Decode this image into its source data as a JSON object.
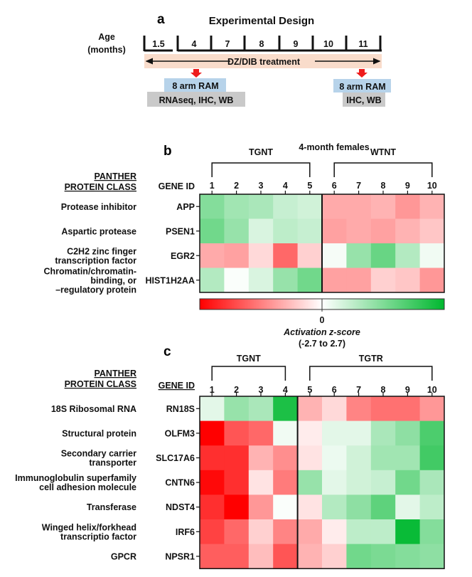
{
  "panel_a": {
    "letter": "a",
    "title": "Experimental Design",
    "age_label_1": "Age",
    "age_label_2": "(months)",
    "timepoints": [
      "1.5",
      "4",
      "7",
      "8",
      "9",
      "10",
      "11"
    ],
    "treatment": "DZ/DIB treatment",
    "left_box_top": "8 arm RAM",
    "left_box_bottom": "RNAseq, IHC, WB",
    "right_box_top": "8 arm RAM",
    "right_box_bottom": "IHC, WB",
    "colors": {
      "treatment_band": "#f9dccb",
      "arrow": "#ee1c1c",
      "blue_box": "#b7d3ea",
      "gray_box": "#c9c9c9"
    }
  },
  "chart_data": [
    {
      "type": "heatmap",
      "panel": "b",
      "title": "4-month females",
      "class_header_1": "PANTHER",
      "class_header_2": "PROTEIN CLASS",
      "gene_header": "GENE ID",
      "groups": [
        {
          "name": "TGNT",
          "columns": [
            1,
            2,
            3,
            4,
            5
          ]
        },
        {
          "name": "WTNT",
          "columns": [
            6,
            7,
            8,
            9,
            10
          ]
        }
      ],
      "columns": [
        "1",
        "2",
        "3",
        "4",
        "5",
        "6",
        "7",
        "8",
        "9",
        "10"
      ],
      "rows": [
        {
          "gene": "APP",
          "class": [
            "Protease inhibitor"
          ],
          "values": [
            1.3,
            1.0,
            0.9,
            0.6,
            0.5,
            -0.9,
            -0.9,
            -0.8,
            -1.1,
            -0.8
          ]
        },
        {
          "gene": "PSEN1",
          "class": [
            "Aspartic protease"
          ],
          "values": [
            1.5,
            1.1,
            0.4,
            0.7,
            0.6,
            -1.0,
            -0.9,
            -1.0,
            -0.8,
            -0.6
          ]
        },
        {
          "gene": "EGR2",
          "class": [
            "C2H2 zinc finger",
            "transcription factor"
          ],
          "values": [
            -0.9,
            -1.0,
            -0.4,
            -1.6,
            -0.5,
            0.1,
            1.1,
            1.6,
            0.8,
            0.15
          ]
        },
        {
          "gene": "HIST1H2AA",
          "class": [
            "Chromatin/chromatin-",
            "binding, or",
            "–regulatory protein"
          ],
          "values": [
            0.8,
            0.05,
            0.4,
            1.1,
            1.5,
            -1.0,
            -1.0,
            -0.5,
            -0.6,
            -1.1
          ]
        }
      ],
      "colorbar": {
        "min": -2.7,
        "max": 2.7,
        "tick": "0",
        "label": "Activation z-score",
        "range_label": "(-2.7 to 2.7)",
        "low_color": "#ff0000",
        "mid_color": "#ffffff",
        "high_color": "#00b82f"
      }
    },
    {
      "type": "heatmap",
      "panel": "c",
      "class_header_1": "PANTHER",
      "class_header_2": "PROTEIN CLASS",
      "gene_header": "GENE ID",
      "groups": [
        {
          "name": "TGNT",
          "columns": [
            1,
            2,
            3,
            4
          ]
        },
        {
          "name": "TGTR",
          "columns": [
            5,
            6,
            7,
            8,
            9,
            10
          ]
        }
      ],
      "columns": [
        "1",
        "2",
        "3",
        "4",
        "5",
        "6",
        "7",
        "8",
        "9",
        "10"
      ],
      "rows": [
        {
          "gene": "RN18S",
          "class": [
            "18S Ribosomal RNA"
          ],
          "values": [
            0.3,
            1.1,
            0.9,
            2.4,
            -0.8,
            -0.4,
            -1.3,
            -1.5,
            -1.5,
            -1.1
          ]
        },
        {
          "gene": "OLFM3",
          "class": [
            "Structural protein"
          ],
          "values": [
            -2.7,
            -1.8,
            -1.6,
            0.15,
            -0.2,
            0.3,
            0.3,
            0.9,
            1.2,
            1.9
          ]
        },
        {
          "gene": "SLC17A6",
          "class": [
            "Secondary carrier",
            "transporter"
          ],
          "values": [
            -2.2,
            -2.2,
            -0.8,
            -1.2,
            -0.3,
            0.2,
            0.5,
            1.0,
            1.0,
            2.0
          ]
        },
        {
          "gene": "CNTN6",
          "class": [
            "Immunoglobulin superfamily",
            "cell adhesion molecule"
          ],
          "values": [
            -2.6,
            -2.2,
            -0.3,
            -1.4,
            1.1,
            0.3,
            0.5,
            0.6,
            1.5,
            0.9
          ]
        },
        {
          "gene": "NDST4",
          "class": [
            "Transferase"
          ],
          "values": [
            -2.2,
            -2.7,
            -1.1,
            0.05,
            -0.3,
            0.8,
            1.2,
            1.7,
            0.3,
            0.7
          ]
        },
        {
          "gene": "IRF6",
          "class": [
            "Winged helix/forkhead",
            "transcriptio factor"
          ],
          "values": [
            -2.0,
            -1.6,
            -0.5,
            -1.3,
            -0.9,
            -0.2,
            0.7,
            0.7,
            2.6,
            1.3
          ]
        },
        {
          "gene": "NPSR1",
          "class": [
            "GPCR"
          ],
          "values": [
            -1.7,
            -1.7,
            -0.7,
            -1.8,
            -0.8,
            -0.5,
            1.5,
            1.4,
            1.3,
            1.2
          ]
        }
      ]
    }
  ]
}
